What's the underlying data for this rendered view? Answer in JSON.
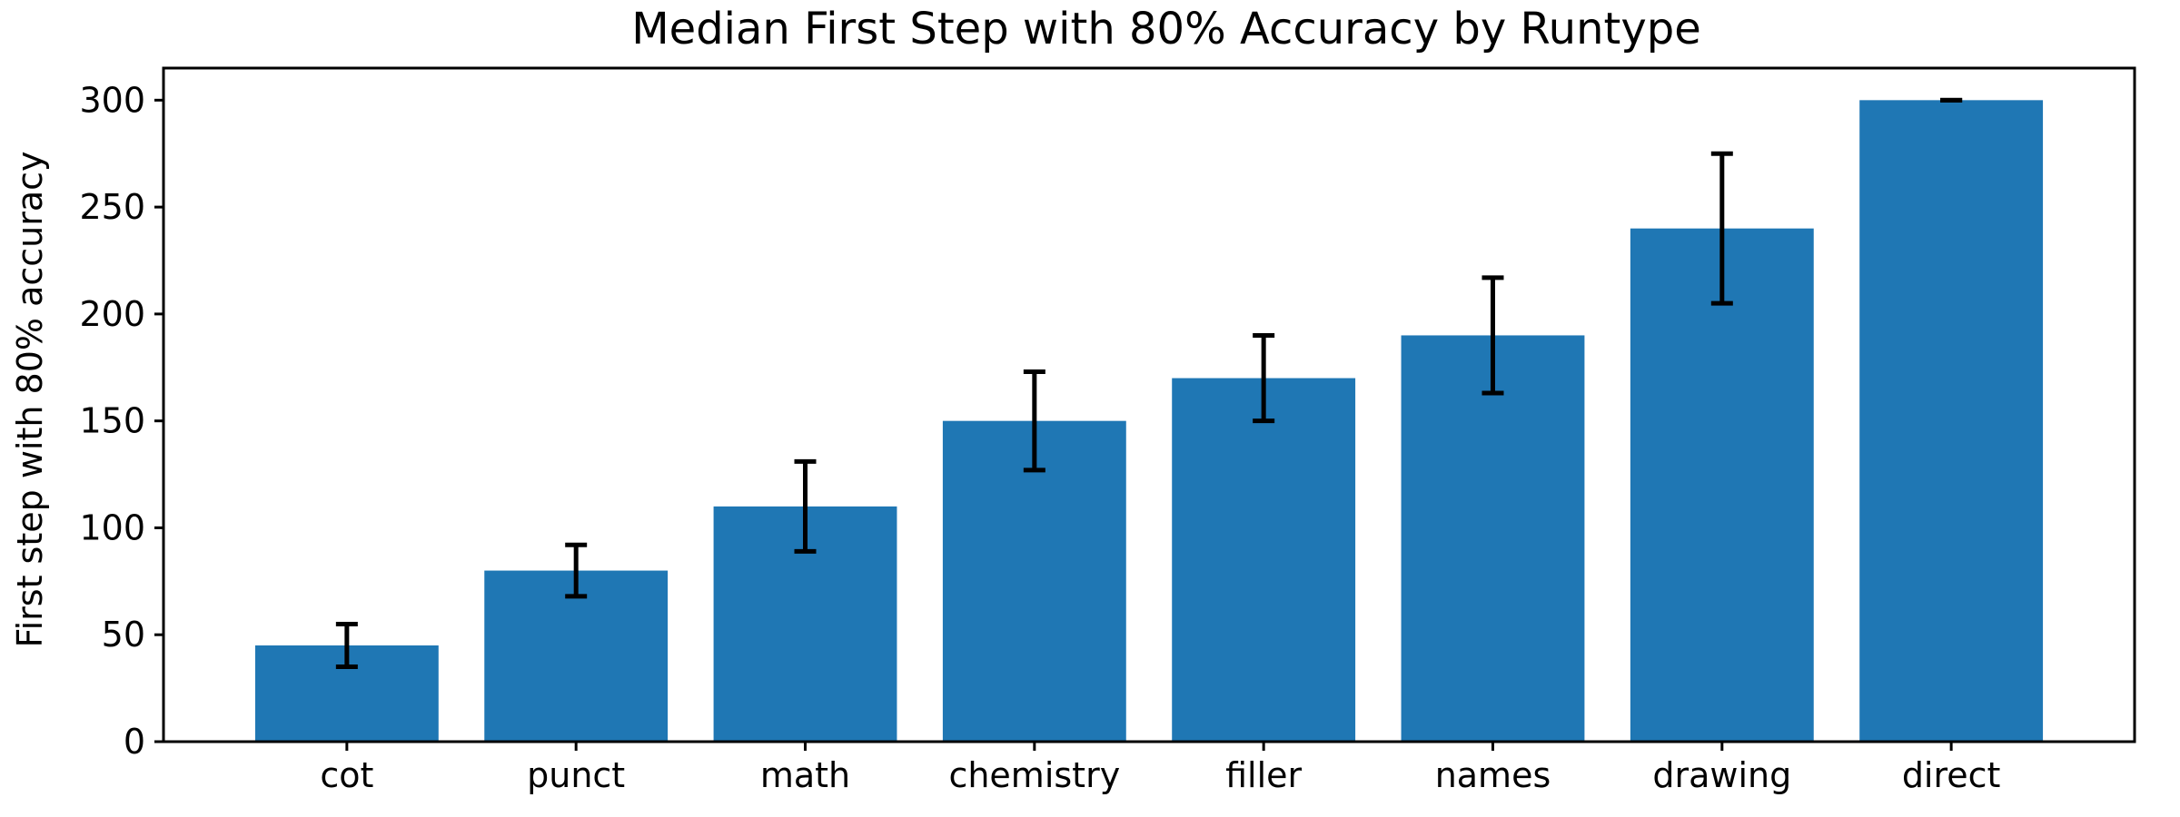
{
  "chart_data": {
    "type": "bar",
    "title": "Median First Step with 80% Accuracy by Runtype",
    "xlabel": "",
    "ylabel": "First step with 80% accuracy",
    "categories": [
      "cot",
      "punct",
      "math",
      "chemistry",
      "filler",
      "names",
      "drawing",
      "direct"
    ],
    "values": [
      45,
      80,
      110,
      150,
      170,
      190,
      240,
      300
    ],
    "error_low": [
      35,
      68,
      89,
      127,
      150,
      163,
      205,
      300
    ],
    "error_high": [
      55,
      92,
      131,
      173,
      190,
      217,
      275,
      300
    ],
    "ylim": [
      0,
      315
    ],
    "yticks": [
      0,
      50,
      100,
      150,
      200,
      250,
      300
    ],
    "bar_color": "#1f77b4",
    "error_color": "#000000",
    "grid": false,
    "legend": "none"
  }
}
